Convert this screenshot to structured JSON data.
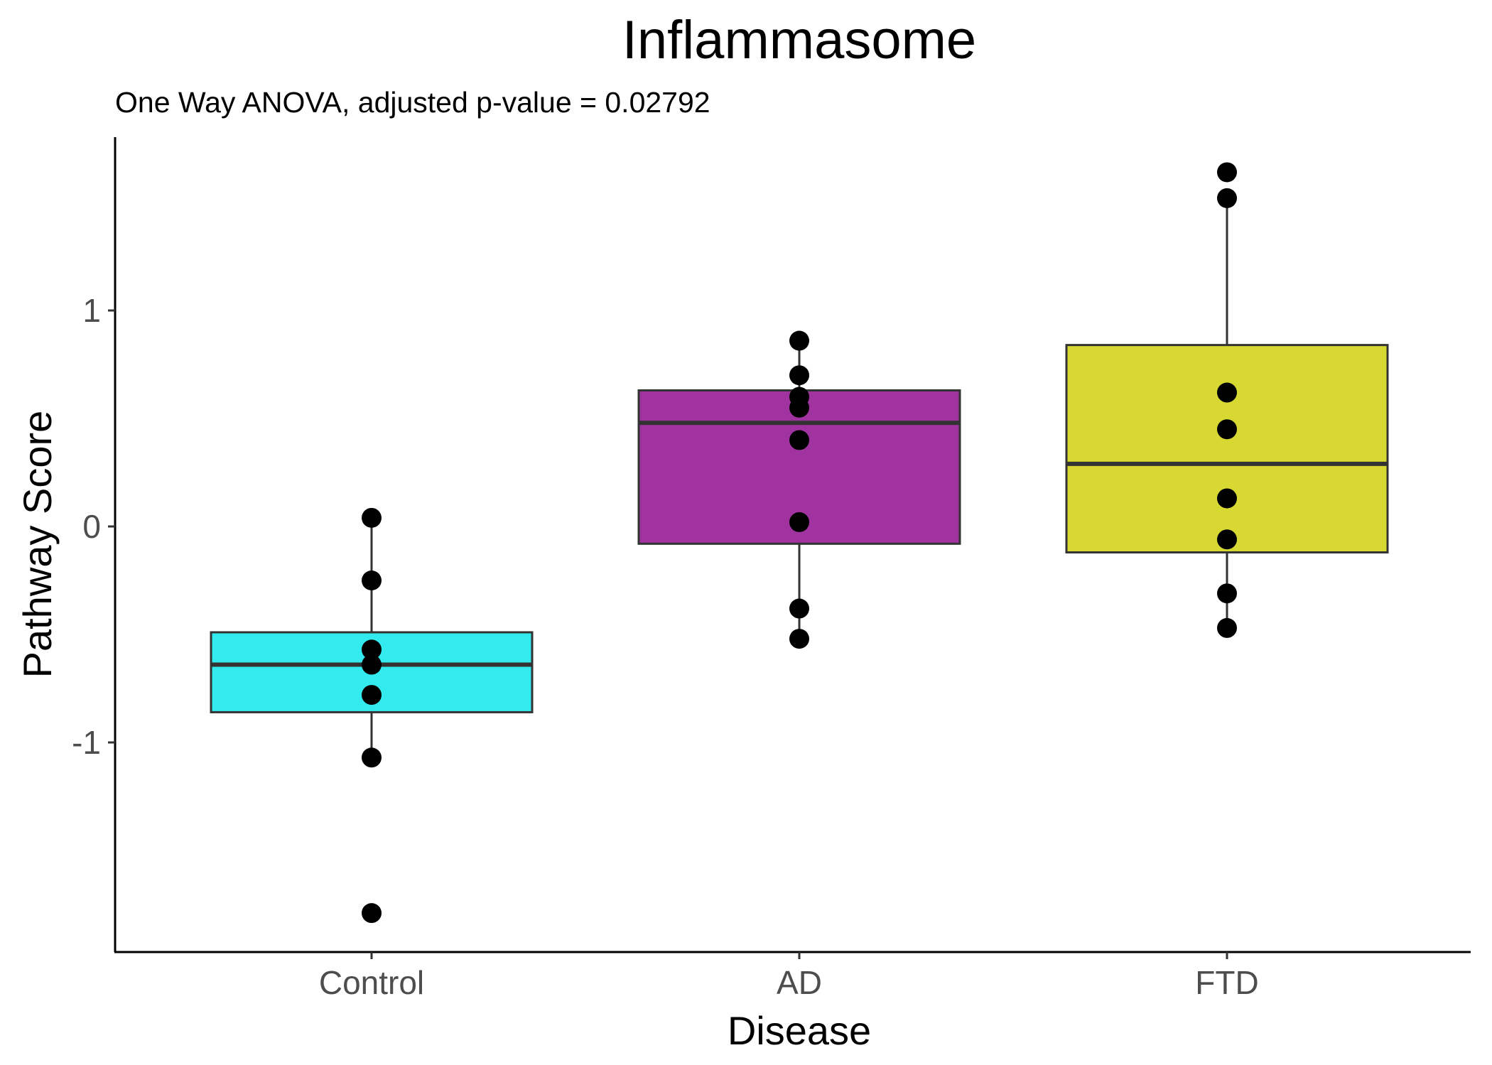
{
  "chart_data": {
    "type": "box",
    "title": "Inflammasome",
    "subtitle": "One Way ANOVA, adjusted p-value = 0.02792",
    "xlabel": "Disease",
    "ylabel": "Pathway Score",
    "categories": [
      "Control",
      "AD",
      "FTD"
    ],
    "y_ticks": [
      -1,
      0,
      1
    ],
    "y_tick_labels": [
      "-1",
      "0",
      "1"
    ],
    "ylim": [
      -1.95,
      1.8
    ],
    "grid": false,
    "legend": "none",
    "boxes": [
      {
        "category": "Control",
        "color": "#33eaee",
        "q1": -0.86,
        "median": -0.64,
        "q3": -0.49,
        "whisker_low": -1.07,
        "whisker_high": 0.04,
        "points": [
          0.04,
          -0.25,
          -0.57,
          -0.64,
          -0.78,
          -1.07,
          -1.79
        ]
      },
      {
        "category": "AD",
        "color": "#a033a0",
        "q1": -0.08,
        "median": 0.48,
        "q3": 0.63,
        "whisker_low": -0.52,
        "whisker_high": 0.86,
        "points": [
          0.86,
          0.7,
          0.6,
          0.55,
          0.4,
          0.02,
          -0.38,
          -0.52
        ]
      },
      {
        "category": "FTD",
        "color": "#d8d833",
        "q1": -0.12,
        "median": 0.29,
        "q3": 0.84,
        "whisker_low": -0.47,
        "whisker_high": 1.52,
        "points": [
          1.64,
          1.52,
          0.62,
          0.45,
          0.13,
          -0.06,
          -0.31,
          -0.47
        ]
      }
    ]
  }
}
